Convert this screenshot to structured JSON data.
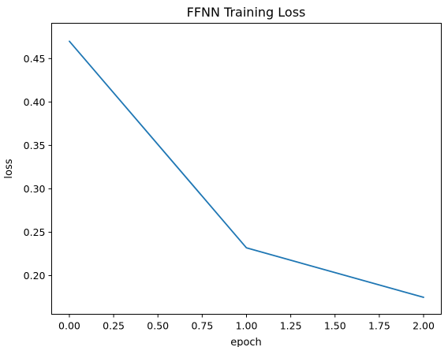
{
  "chart_data": {
    "type": "line",
    "title": "FFNN Training Loss",
    "xlabel": "epoch",
    "ylabel": "loss",
    "xlim": [
      -0.1,
      2.1
    ],
    "ylim": [
      0.1555,
      0.4907
    ],
    "xticks": [
      0.0,
      0.25,
      0.5,
      0.75,
      1.0,
      1.25,
      1.5,
      1.75,
      2.0
    ],
    "xtick_labels": [
      "0.00",
      "0.25",
      "0.50",
      "0.75",
      "1.00",
      "1.25",
      "1.50",
      "1.75",
      "2.00"
    ],
    "yticks": [
      0.2,
      0.25,
      0.3,
      0.35,
      0.4,
      0.45
    ],
    "ytick_labels": [
      "0.20",
      "0.25",
      "0.30",
      "0.35",
      "0.40",
      "0.45"
    ],
    "grid": false,
    "series": [
      {
        "color": "#1f77b4",
        "x": [
          0,
          1,
          2
        ],
        "y": [
          0.47,
          0.232,
          0.175
        ]
      }
    ]
  }
}
